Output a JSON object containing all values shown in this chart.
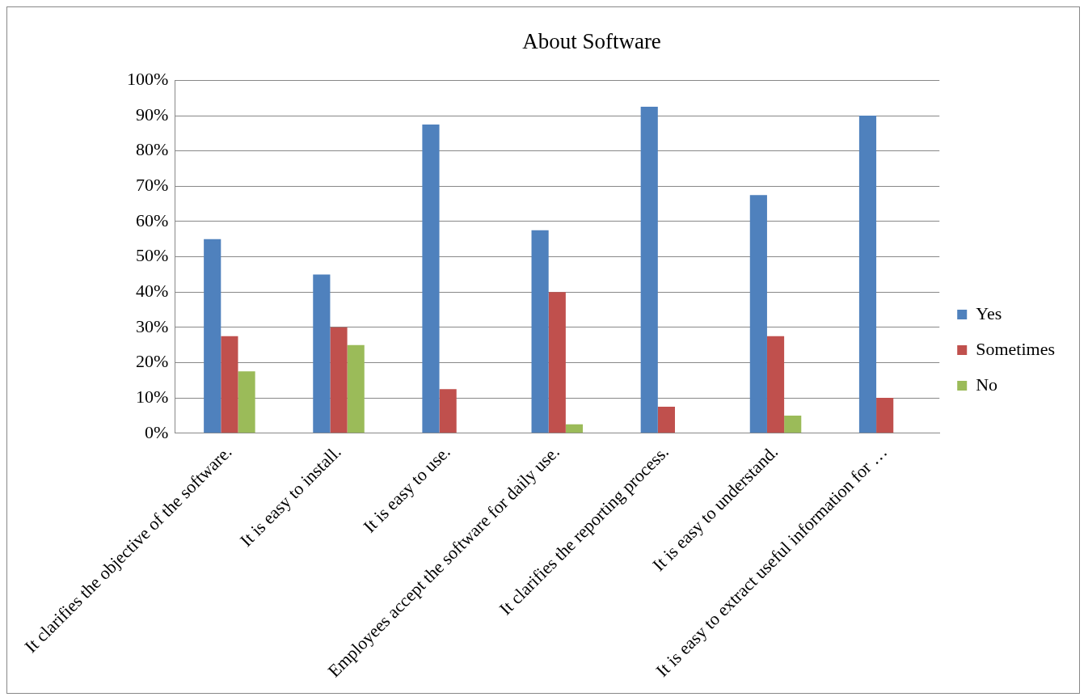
{
  "chart_data": {
    "type": "bar",
    "title": "About Software",
    "categories": [
      "It clarifies the objective of the software.",
      "It is easy to install.",
      "It is easy to use.",
      "Employees accept the software for daily use.",
      "It clarifies the reporting process.",
      "It is easy to understand.",
      "It is easy to extract useful information for …"
    ],
    "series": [
      {
        "name": "Yes",
        "color": "#4f81bd",
        "values": [
          55,
          45,
          87.5,
          57.5,
          92.5,
          67.5,
          90
        ]
      },
      {
        "name": "Sometimes",
        "color": "#c0504d",
        "values": [
          27.5,
          30,
          12.5,
          40,
          7.5,
          27.5,
          10
        ]
      },
      {
        "name": "No",
        "color": "#9bbb59",
        "values": [
          17.5,
          25,
          0,
          2.5,
          0,
          5,
          0
        ]
      }
    ],
    "ylim": [
      0,
      100
    ],
    "yticks": [
      {
        "value": 0,
        "label": "0%"
      },
      {
        "value": 10,
        "label": "10%"
      },
      {
        "value": 20,
        "label": "20%"
      },
      {
        "value": 30,
        "label": "30%"
      },
      {
        "value": 40,
        "label": "40%"
      },
      {
        "value": 50,
        "label": "50%"
      },
      {
        "value": 60,
        "label": "60%"
      },
      {
        "value": 70,
        "label": "70%"
      },
      {
        "value": 80,
        "label": "80%"
      },
      {
        "value": 90,
        "label": "90%"
      },
      {
        "value": 100,
        "label": "100%"
      }
    ],
    "grid": "y",
    "legend": "right"
  }
}
